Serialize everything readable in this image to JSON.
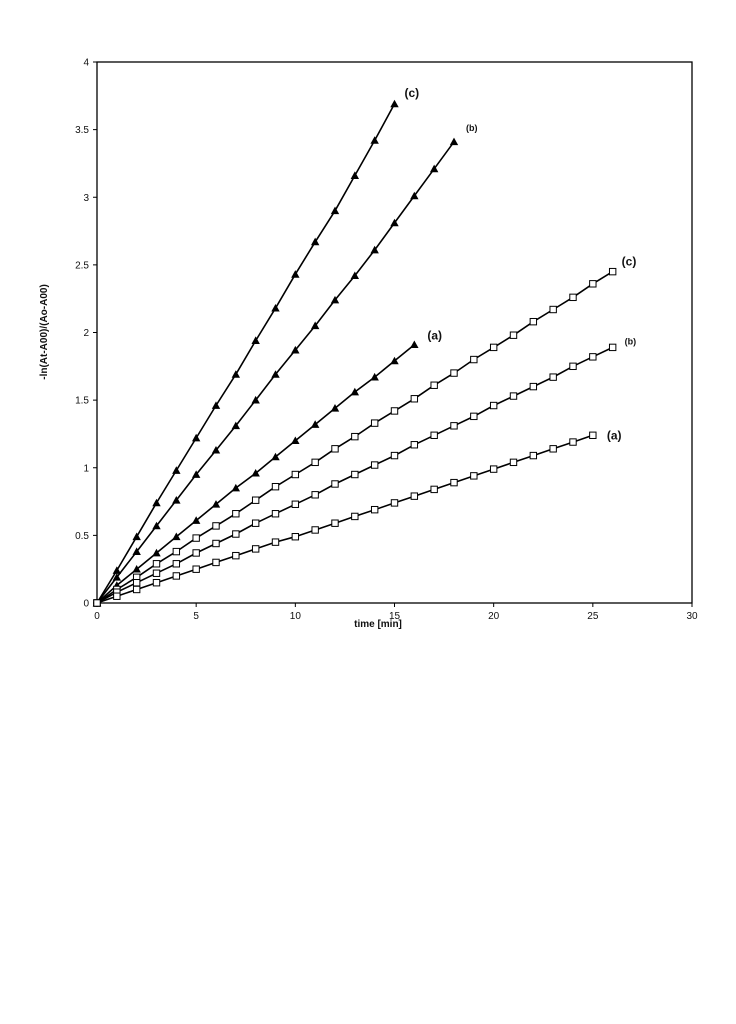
{
  "chart_data": {
    "type": "line",
    "title": "",
    "xlabel": "time [min]",
    "ylabel": "-ln(At-A00)/(Ao-A00)",
    "xlim": [
      0,
      30
    ],
    "ylim": [
      0,
      4
    ],
    "x_ticks": [
      "0",
      "5",
      "10",
      "15",
      "20",
      "25",
      "30"
    ],
    "y_ticks": [
      "0",
      "0.5",
      "1",
      "1.5",
      "2",
      "2.5",
      "3",
      "3.5",
      "4"
    ],
    "grid": false,
    "legend": "none",
    "series": [
      {
        "label": "(c)",
        "marker": "triangle",
        "color": "#000000",
        "x": [
          0,
          1,
          2,
          3,
          4,
          5,
          6,
          7,
          8,
          9,
          10,
          11,
          12,
          13,
          14,
          15
        ],
        "y": [
          0,
          0.24,
          0.49,
          0.74,
          0.98,
          1.22,
          1.46,
          1.69,
          1.94,
          2.18,
          2.43,
          2.67,
          2.9,
          3.16,
          3.42,
          3.69
        ]
      },
      {
        "label": "(b)",
        "marker": "triangle",
        "color": "#000000",
        "x": [
          0,
          1,
          2,
          3,
          4,
          5,
          6,
          7,
          8,
          9,
          10,
          11,
          12,
          13,
          14,
          15,
          16,
          17,
          18
        ],
        "y": [
          0,
          0.19,
          0.38,
          0.57,
          0.76,
          0.95,
          1.13,
          1.31,
          1.5,
          1.69,
          1.87,
          2.05,
          2.24,
          2.42,
          2.61,
          2.81,
          3.01,
          3.21,
          3.41
        ]
      },
      {
        "label": "(a)",
        "marker": "triangle",
        "color": "#000000",
        "x": [
          0,
          1,
          2,
          3,
          4,
          5,
          6,
          7,
          8,
          9,
          10,
          11,
          12,
          13,
          14,
          15,
          16
        ],
        "y": [
          0,
          0.13,
          0.25,
          0.37,
          0.49,
          0.61,
          0.73,
          0.85,
          0.96,
          1.08,
          1.2,
          1.32,
          1.44,
          1.56,
          1.67,
          1.79,
          1.91
        ]
      },
      {
        "label": "(c)",
        "marker": "square",
        "color": "#000000",
        "x": [
          0,
          1,
          2,
          3,
          4,
          5,
          6,
          7,
          8,
          9,
          10,
          11,
          12,
          13,
          14,
          15,
          16,
          17,
          18,
          19,
          20,
          21,
          22,
          23,
          24,
          25,
          26
        ],
        "y": [
          0,
          0.1,
          0.19,
          0.29,
          0.38,
          0.48,
          0.57,
          0.66,
          0.76,
          0.86,
          0.95,
          1.04,
          1.14,
          1.23,
          1.33,
          1.42,
          1.51,
          1.61,
          1.7,
          1.8,
          1.89,
          1.98,
          2.08,
          2.17,
          2.26,
          2.36,
          2.45
        ]
      },
      {
        "label": "(b)",
        "marker": "square",
        "color": "#000000",
        "x": [
          0,
          1,
          2,
          3,
          4,
          5,
          6,
          7,
          8,
          9,
          10,
          11,
          12,
          13,
          14,
          15,
          16,
          17,
          18,
          19,
          20,
          21,
          22,
          23,
          24,
          25,
          26
        ],
        "y": [
          0,
          0.08,
          0.15,
          0.22,
          0.29,
          0.37,
          0.44,
          0.51,
          0.59,
          0.66,
          0.73,
          0.8,
          0.88,
          0.95,
          1.02,
          1.09,
          1.17,
          1.24,
          1.31,
          1.38,
          1.46,
          1.53,
          1.6,
          1.67,
          1.75,
          1.82,
          1.89
        ]
      },
      {
        "label": "(a)",
        "marker": "square",
        "color": "#000000",
        "x": [
          0,
          1,
          2,
          3,
          4,
          5,
          6,
          7,
          8,
          9,
          10,
          11,
          12,
          13,
          14,
          15,
          16,
          17,
          18,
          19,
          20,
          21,
          22,
          23,
          24,
          25
        ],
        "y": [
          0,
          0.05,
          0.1,
          0.15,
          0.2,
          0.25,
          0.3,
          0.35,
          0.4,
          0.45,
          0.49,
          0.54,
          0.59,
          0.64,
          0.69,
          0.74,
          0.79,
          0.84,
          0.89,
          0.94,
          0.99,
          1.04,
          1.09,
          1.14,
          1.19,
          1.24
        ]
      }
    ]
  }
}
